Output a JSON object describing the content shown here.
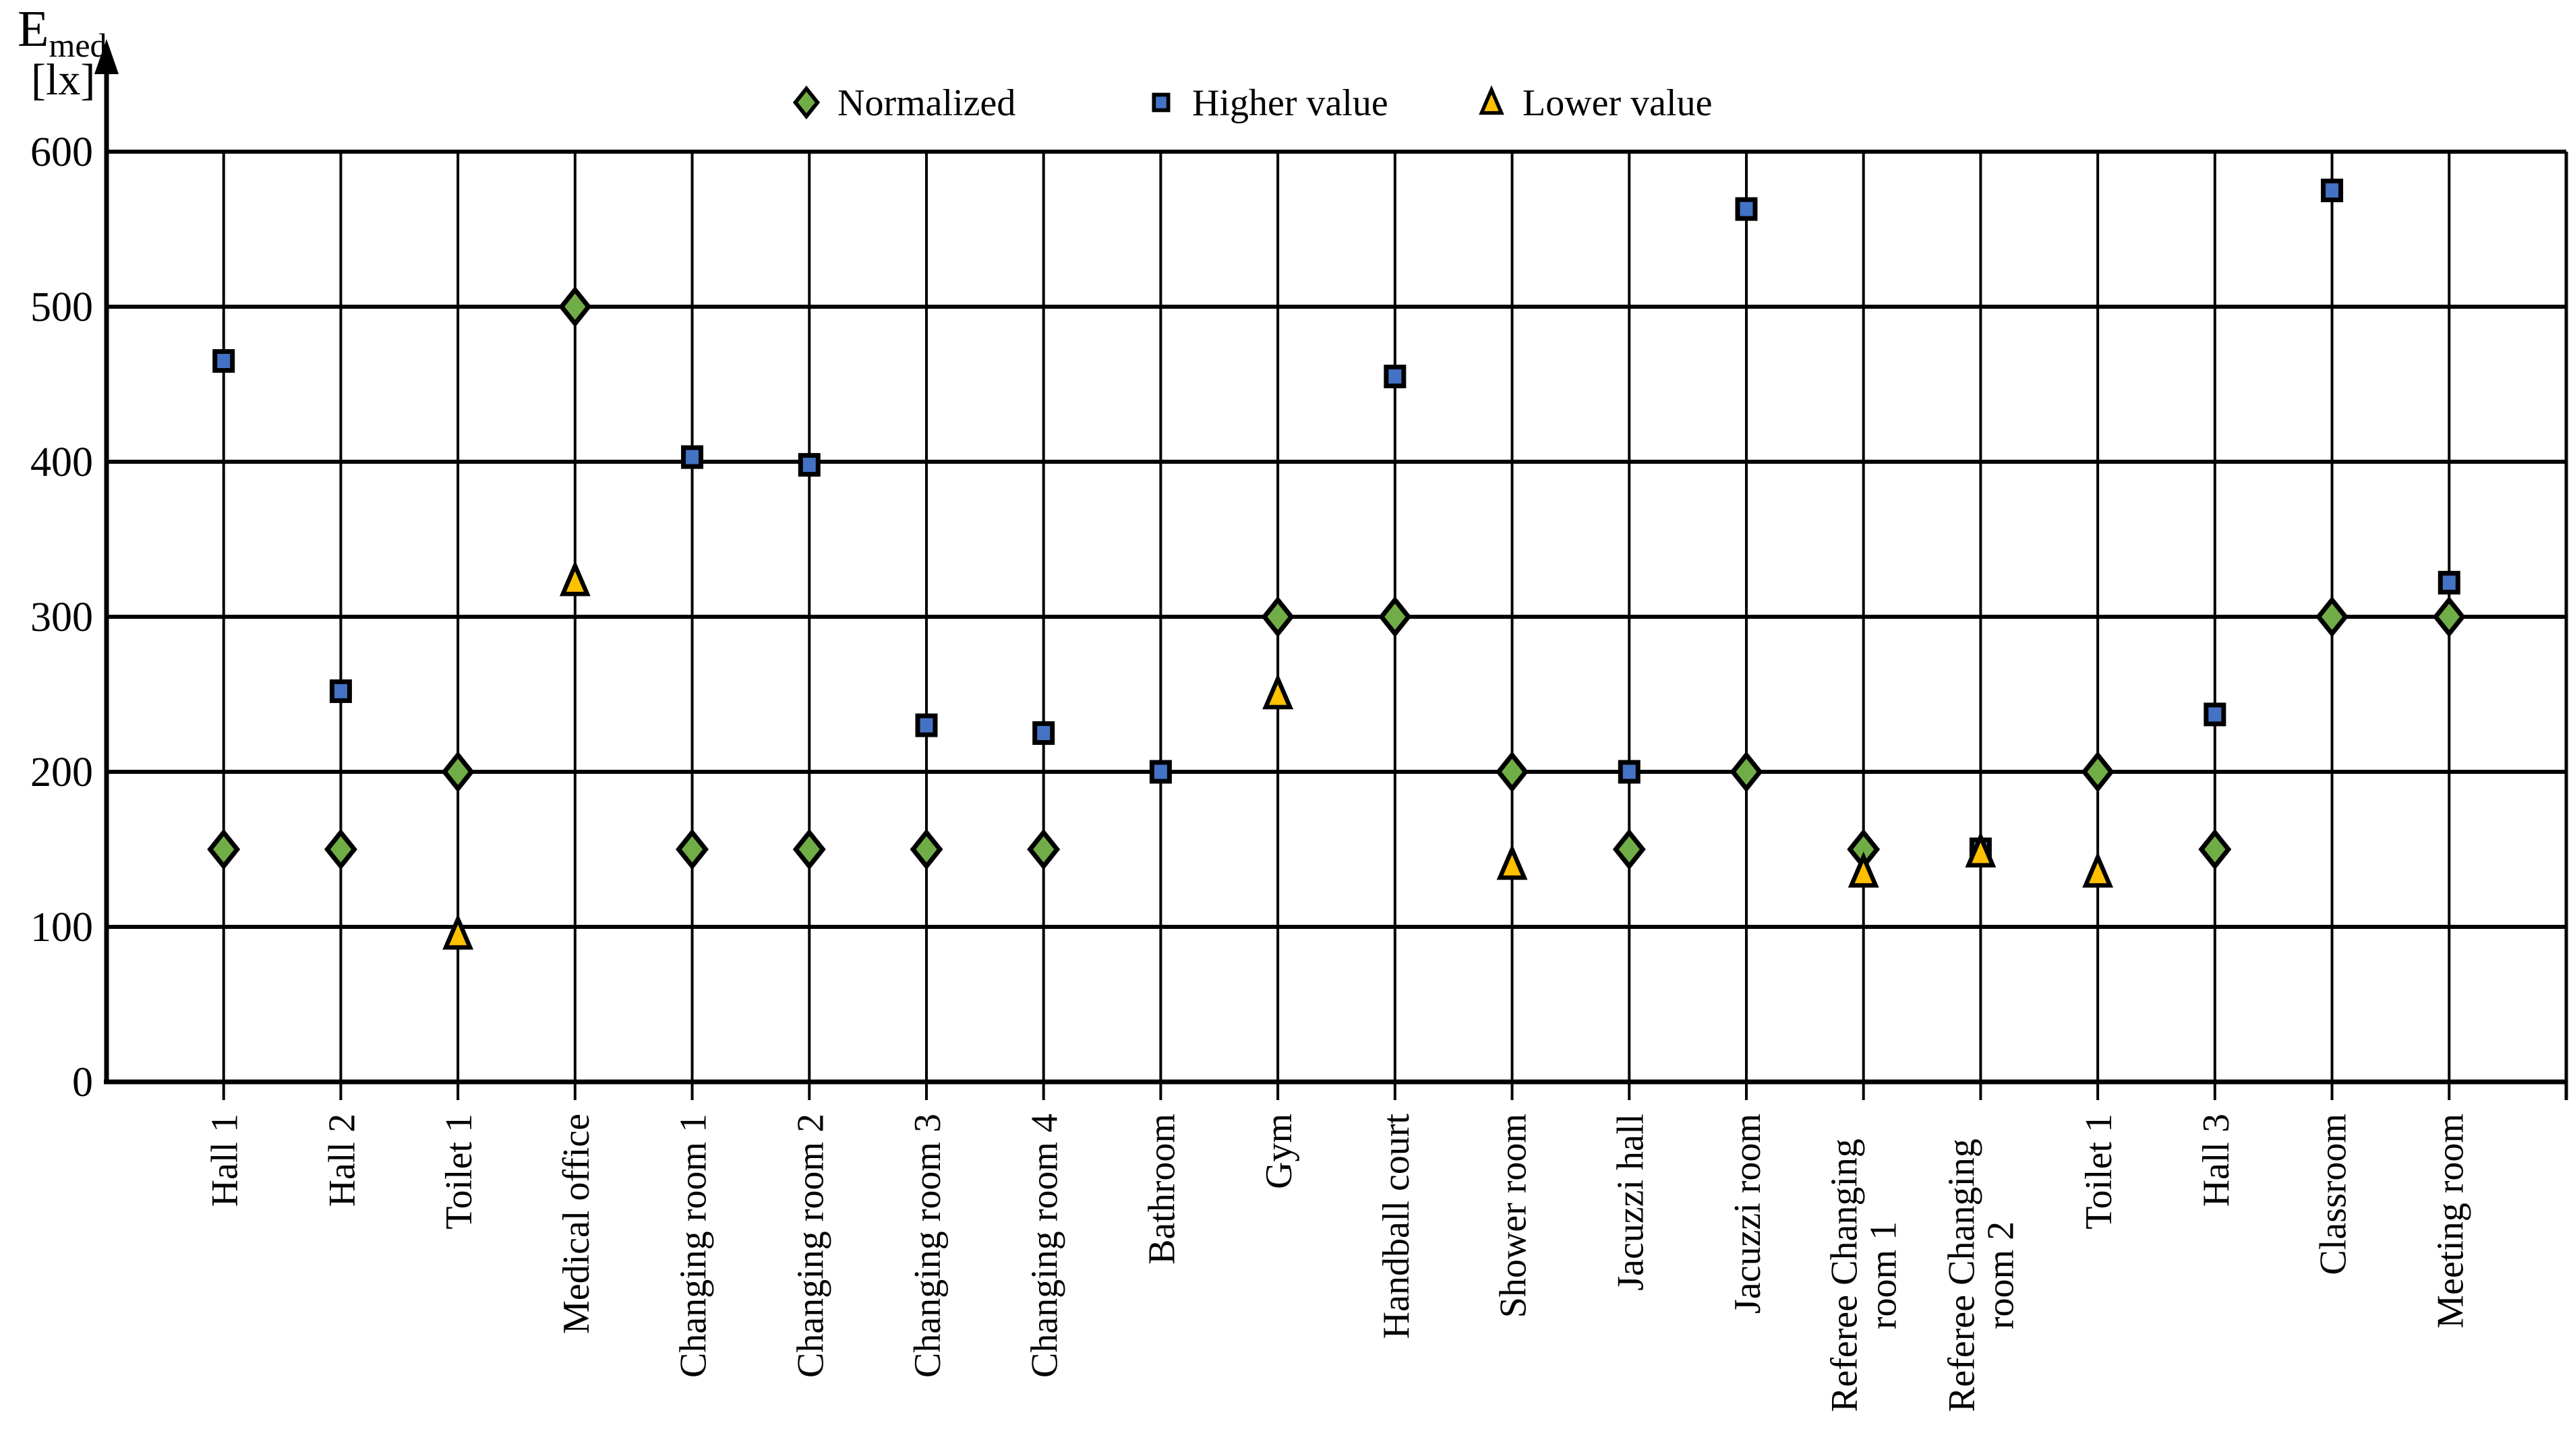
{
  "chart_data": {
    "type": "scatter",
    "y_axis": {
      "label_main": "E",
      "label_sub": "med",
      "label_unit": "[lx]",
      "min": 0,
      "max": 600,
      "tick_step": 100,
      "ticks": [
        0,
        100,
        200,
        300,
        400,
        500,
        600
      ],
      "grid": true
    },
    "legend_position": "top",
    "categories": [
      {
        "lines": [
          "Hall 1"
        ]
      },
      {
        "lines": [
          "Hall 2"
        ]
      },
      {
        "lines": [
          "Toilet 1"
        ]
      },
      {
        "lines": [
          "Medical office"
        ]
      },
      {
        "lines": [
          "Changing room 1"
        ]
      },
      {
        "lines": [
          "Changing room 2"
        ]
      },
      {
        "lines": [
          "Changing room 3"
        ]
      },
      {
        "lines": [
          "Changing room 4"
        ]
      },
      {
        "lines": [
          "Bathroom"
        ]
      },
      {
        "lines": [
          "Gym"
        ]
      },
      {
        "lines": [
          "Handball court"
        ]
      },
      {
        "lines": [
          "Shower room"
        ]
      },
      {
        "lines": [
          "Jacuzzi hall"
        ]
      },
      {
        "lines": [
          "Jacuzzi room"
        ]
      },
      {
        "lines": [
          "Referee Changing",
          "room 1"
        ]
      },
      {
        "lines": [
          "Referee Changing",
          "room 2"
        ]
      },
      {
        "lines": [
          "Toilet 1"
        ]
      },
      {
        "lines": [
          "Hall 3"
        ]
      },
      {
        "lines": [
          "Classroom"
        ]
      },
      {
        "lines": [
          "Meeting room"
        ]
      }
    ],
    "series": [
      {
        "name": "Normalized",
        "marker": "diamond",
        "color": "#70AD47",
        "values": [
          150,
          150,
          200,
          500,
          150,
          150,
          150,
          150,
          null,
          300,
          300,
          200,
          150,
          200,
          150,
          null,
          200,
          150,
          300,
          300
        ]
      },
      {
        "name": "Higher value",
        "marker": "square",
        "color": "#4472C4",
        "values": [
          465,
          252,
          null,
          null,
          403,
          398,
          230,
          225,
          200,
          null,
          455,
          null,
          200,
          563,
          null,
          150,
          null,
          237,
          575,
          322
        ]
      },
      {
        "name": "Lower value",
        "marker": "triangle",
        "color": "#FFC000",
        "values": [
          null,
          null,
          95,
          323,
          null,
          null,
          null,
          null,
          null,
          250,
          null,
          140,
          null,
          null,
          135,
          148,
          135,
          null,
          null,
          null
        ]
      }
    ]
  }
}
